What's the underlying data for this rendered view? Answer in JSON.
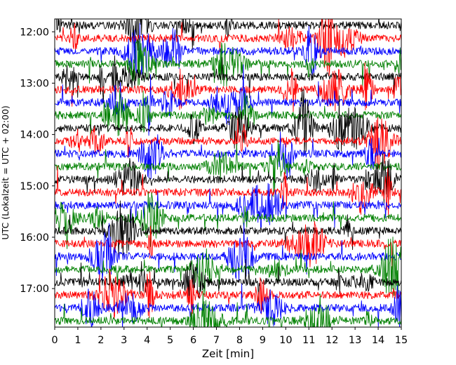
{
  "chart_data": {
    "type": "line",
    "subtype": "helicorder",
    "xlabel": "Zeit  [min]",
    "ylabel": "UTC (Lokalzeit = UTC + 02:00)",
    "xlim": [
      0,
      15
    ],
    "x_ticks": [
      0,
      1,
      2,
      3,
      4,
      5,
      6,
      7,
      8,
      9,
      10,
      11,
      12,
      13,
      14,
      15
    ],
    "y_ticks": [
      "12:00",
      "13:00",
      "14:00",
      "15:00",
      "16:00",
      "17:00"
    ],
    "y_start": "11:45",
    "y_end": "17:45",
    "trace_interval_minutes": 15,
    "trace_colors": [
      "#000000",
      "#ff0000",
      "#0000ff",
      "#008000"
    ],
    "grid": false,
    "legend": "none"
  }
}
